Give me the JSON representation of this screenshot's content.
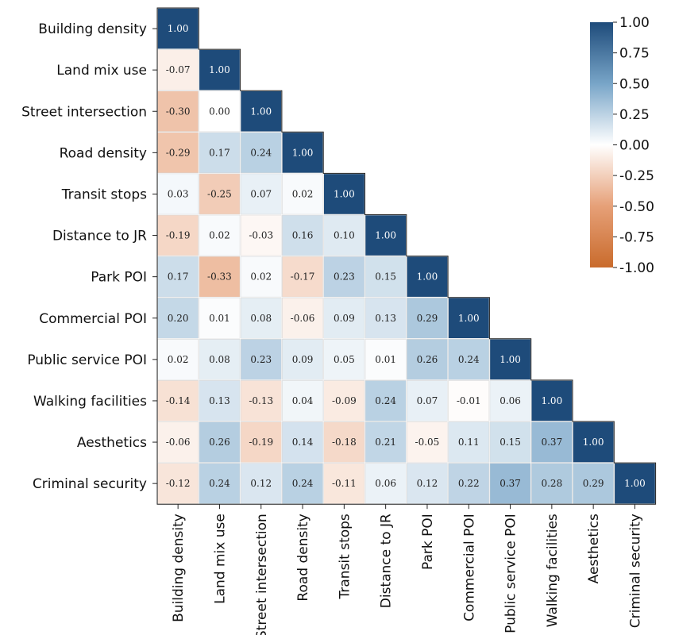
{
  "chart_data": {
    "type": "heatmap",
    "variables": [
      "Building density",
      "Land mix use",
      "Street intersection",
      "Road density",
      "Transit stops",
      "Distance to JR",
      "Park POI",
      "Commercial POI",
      "Public service POI",
      "Walking facilities",
      "Aesthetics",
      "Criminal security"
    ],
    "lower_triangle_values": [
      [
        "1.00"
      ],
      [
        "-0.07",
        "1.00"
      ],
      [
        "-0.30",
        "0.00",
        "1.00"
      ],
      [
        "-0.29",
        "0.17",
        "0.24",
        "1.00"
      ],
      [
        "0.03",
        "-0.25",
        "0.07",
        "0.02",
        "1.00"
      ],
      [
        "-0.19",
        "0.02",
        "-0.03",
        "0.16",
        "0.10",
        "1.00"
      ],
      [
        "0.17",
        "-0.33",
        "0.02",
        "-0.17",
        "0.23",
        "0.15",
        "1.00"
      ],
      [
        "0.20",
        "0.01",
        "0.08",
        "-0.06",
        "0.09",
        "0.13",
        "0.29",
        "1.00"
      ],
      [
        "0.02",
        "0.08",
        "0.23",
        "0.09",
        "0.05",
        "0.01",
        "0.26",
        "0.24",
        "1.00"
      ],
      [
        "-0.14",
        "0.13",
        "-0.13",
        "0.04",
        "-0.09",
        "0.24",
        "0.07",
        "-0.01",
        "0.06",
        "1.00"
      ],
      [
        "-0.06",
        "0.26",
        "-0.19",
        "0.14",
        "-0.18",
        "0.21",
        "-0.05",
        "0.11",
        "0.15",
        "0.37",
        "1.00"
      ],
      [
        "-0.12",
        "0.24",
        "0.12",
        "0.24",
        "-0.11",
        "0.06",
        "0.12",
        "0.22",
        "0.37",
        "0.28",
        "0.29",
        "1.00"
      ]
    ],
    "colorbar": {
      "range": [
        -1.0,
        1.0
      ],
      "ticks": [
        "1.00",
        "0.75",
        "0.50",
        "0.25",
        "0.00",
        "-0.25",
        "-0.50",
        "-0.75",
        "-1.00"
      ],
      "colors": {
        "positive": "#1e4b7a",
        "zero": "#ffffff",
        "negative": "#c96b2c"
      }
    }
  }
}
